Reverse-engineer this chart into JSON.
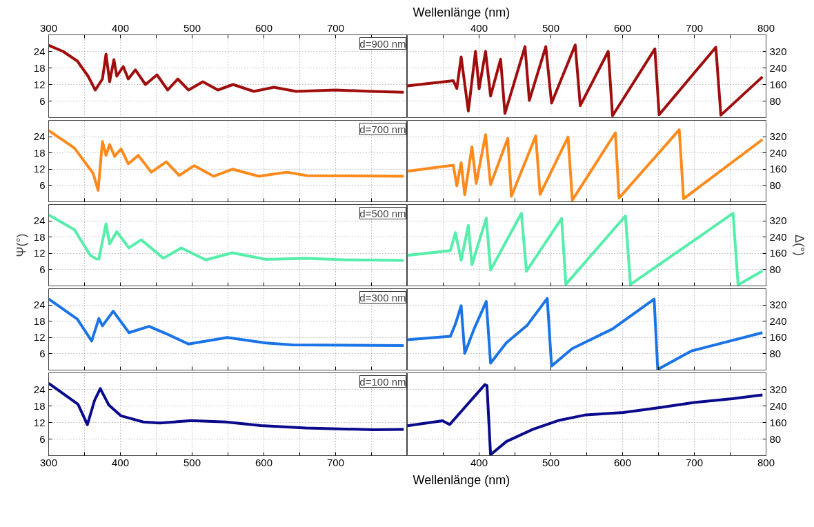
{
  "chart_data": [
    {
      "type": "line",
      "annotations": [
        "d=900 nm"
      ],
      "xlim": [
        300,
        800
      ],
      "xticks": [
        300,
        {
          "value": 350,
          "label": null
        },
        400,
        {
          "value": 450,
          "label": null
        },
        500,
        {
          "value": 550,
          "label": null
        },
        600,
        {
          "value": 650,
          "label": null
        },
        700,
        {
          "value": 750,
          "label": null
        }
      ],
      "ylim": [
        0,
        30
      ],
      "yticks": [
        6,
        12,
        18,
        24
      ],
      "grid": true,
      "series": [
        {
          "color": "#a00d0d",
          "x": [
            300,
            320,
            340,
            355,
            365,
            375,
            380,
            385,
            391,
            395,
            404,
            411,
            421,
            435,
            451,
            466,
            480,
            495,
            515,
            536,
            557,
            586,
            614,
            645,
            700,
            750,
            795
          ],
          "values": [
            26.2,
            24,
            20.5,
            15,
            10,
            14,
            23,
            13,
            21,
            15,
            18.5,
            14,
            17.3,
            12,
            15.5,
            10,
            14,
            10,
            13,
            10,
            12,
            9.5,
            11,
            9.5,
            10,
            9.5,
            9.2
          ]
        }
      ]
    },
    {
      "type": "line",
      "xlabel": "Wellenlänge (nm)",
      "xlim": [
        300,
        800
      ],
      "xticks": [
        {
          "value": 350,
          "label": null
        },
        400,
        {
          "value": 450,
          "label": null
        },
        500,
        {
          "value": 550,
          "label": null
        },
        600,
        {
          "value": 650,
          "label": null
        },
        700,
        {
          "value": 750,
          "label": null
        },
        800
      ],
      "y2lim": [
        0,
        400
      ],
      "y2ticks": [
        80,
        160,
        240,
        320
      ],
      "grid": true,
      "series": [
        {
          "color": "#a00d0d",
          "axis": "y2",
          "x": [
            300,
            364,
            369,
            375,
            385,
            395,
            400,
            409,
            416,
            430,
            436,
            464,
            470,
            493,
            501,
            534,
            541,
            580,
            586,
            645,
            651,
            730,
            737,
            795
          ],
          "values": [
            153,
            178,
            141,
            293,
            32,
            320,
            139,
            320,
            104,
            282,
            20,
            343,
            83,
            343,
            70,
            351,
            58,
            320,
            9,
            332,
            14,
            340,
            12,
            197
          ]
        }
      ]
    },
    {
      "type": "line",
      "annotations": [
        "d=700 nm"
      ],
      "xlim": [
        300,
        800
      ],
      "xticks": [
        300,
        {
          "value": 350,
          "label": null
        },
        400,
        {
          "value": 450,
          "label": null
        },
        500,
        {
          "value": 550,
          "label": null
        },
        600,
        {
          "value": 650,
          "label": null
        },
        700,
        {
          "value": 750,
          "label": null
        }
      ],
      "ylim": [
        0,
        30
      ],
      "yticks": [
        6,
        12,
        18,
        24
      ],
      "grid": true,
      "tick_labels": "y",
      "series": [
        {
          "color": "#ff8a1c",
          "x": [
            300,
            336,
            362,
            369,
            375,
            380,
            385,
            392,
            401,
            411,
            425,
            443,
            464,
            482,
            503,
            530,
            556,
            593,
            632,
            661,
            795
          ],
          "values": [
            26.3,
            19.8,
            10.5,
            4.2,
            22.2,
            17.1,
            21.1,
            16.7,
            19.5,
            14,
            17.1,
            10.9,
            14.7,
            9.7,
            13.3,
            9.4,
            12,
            9.4,
            10.9,
            9.6,
            9.4
          ]
        }
      ]
    },
    {
      "type": "line",
      "xlim": [
        300,
        800
      ],
      "xticks": [
        {
          "value": 350,
          "label": null
        },
        400,
        {
          "value": 450,
          "label": null
        },
        500,
        {
          "value": 550,
          "label": null
        },
        600,
        {
          "value": 650,
          "label": null
        },
        700,
        {
          "value": 750,
          "label": null
        },
        800
      ],
      "y2lim": [
        0,
        400
      ],
      "y2ticks": [
        80,
        160,
        240,
        320
      ],
      "grid": true,
      "tick_labels": "y",
      "series": [
        {
          "color": "#ff8a1c",
          "axis": "y2",
          "x": [
            300,
            364,
            369,
            375,
            380,
            390,
            396,
            409,
            416,
            440,
            445,
            479,
            485,
            524,
            530,
            590,
            595,
            679,
            685,
            795
          ],
          "values": [
            150,
            180,
            78,
            192,
            35,
            270,
            90,
            330,
            84,
            312,
            27,
            324,
            36,
            318,
            8,
            339,
            18,
            354,
            15,
            306
          ]
        }
      ]
    },
    {
      "type": "line",
      "annotations": [
        "d=500 nm"
      ],
      "ylabel": "Ψ(°)",
      "xlim": [
        300,
        800
      ],
      "xticks": [
        300,
        {
          "value": 350,
          "label": null
        },
        400,
        {
          "value": 450,
          "label": null
        },
        500,
        {
          "value": 550,
          "label": null
        },
        600,
        {
          "value": 650,
          "label": null
        },
        700,
        {
          "value": 750,
          "label": null
        }
      ],
      "ylim": [
        0,
        30
      ],
      "yticks": [
        6,
        12,
        18,
        24
      ],
      "grid": true,
      "tick_labels": "y",
      "series": [
        {
          "color": "#55eeaa",
          "x": [
            300,
            336,
            358,
            366,
            370,
            380,
            385,
            395,
            412,
            429,
            460,
            485,
            519,
            556,
            603,
            659,
            714,
            795
          ],
          "values": [
            26.2,
            20.7,
            11.3,
            10,
            9.9,
            22.9,
            15.5,
            20,
            14,
            17,
            10.2,
            14,
            9.6,
            12.2,
            9.8,
            10.2,
            9.6,
            9.4
          ]
        }
      ]
    },
    {
      "type": "line",
      "y2label": "Δ(°)",
      "xlim": [
        300,
        800
      ],
      "xticks": [
        {
          "value": 350,
          "label": null
        },
        400,
        {
          "value": 450,
          "label": null
        },
        500,
        {
          "value": 550,
          "label": null
        },
        600,
        {
          "value": 650,
          "label": null
        },
        700,
        {
          "value": 750,
          "label": null
        },
        800
      ],
      "y2lim": [
        0,
        400
      ],
      "y2ticks": [
        80,
        160,
        240,
        320
      ],
      "grid": true,
      "tick_labels": "y",
      "series": [
        {
          "color": "#55eeaa",
          "axis": "y2",
          "x": [
            300,
            360,
            367,
            375,
            385,
            390,
            410,
            416,
            459,
            466,
            515,
            521,
            604,
            611,
            754,
            761,
            795
          ],
          "values": [
            150,
            174,
            262,
            126,
            297,
            104,
            333,
            78,
            357,
            72,
            332,
            8,
            344,
            7,
            357,
            5,
            74
          ]
        }
      ]
    },
    {
      "type": "line",
      "annotations": [
        "d=300 nm"
      ],
      "xlim": [
        300,
        800
      ],
      "xticks": [
        300,
        {
          "value": 350,
          "label": null
        },
        400,
        {
          "value": 450,
          "label": null
        },
        500,
        {
          "value": 550,
          "label": null
        },
        600,
        {
          "value": 650,
          "label": null
        },
        700,
        {
          "value": 750,
          "label": null
        }
      ],
      "ylim": [
        0,
        30
      ],
      "yticks": [
        6,
        12,
        18,
        24
      ],
      "grid": true,
      "tick_labels": "y",
      "series": [
        {
          "color": "#1a74e8",
          "x": [
            300,
            340,
            360,
            370,
            375,
            390,
            412,
            440,
            464,
            495,
            549,
            603,
            640,
            795
          ],
          "values": [
            26.2,
            18.8,
            10.7,
            19,
            16.3,
            21.7,
            13.8,
            16.1,
            13.4,
            9.6,
            12,
            10,
            9.3,
            9
          ]
        }
      ]
    },
    {
      "type": "line",
      "xlim": [
        300,
        800
      ],
      "xticks": [
        {
          "value": 350,
          "label": null
        },
        400,
        {
          "value": 450,
          "label": null
        },
        500,
        {
          "value": 550,
          "label": null
        },
        600,
        {
          "value": 650,
          "label": null
        },
        700,
        {
          "value": 750,
          "label": null
        },
        800
      ],
      "y2lim": [
        0,
        400
      ],
      "y2ticks": [
        80,
        160,
        240,
        320
      ],
      "grid": true,
      "tick_labels": "y",
      "series": [
        {
          "color": "#1a74e8",
          "axis": "y2",
          "x": [
            300,
            360,
            367,
            375,
            380,
            393,
            410,
            416,
            438,
            467,
            495,
            501,
            530,
            586,
            644,
            649,
            696,
            795
          ],
          "values": [
            149,
            166,
            226,
            316,
            82,
            202,
            337,
            34,
            134,
            220,
            352,
            20,
            106,
            202,
            349,
            3,
            94,
            184
          ]
        }
      ]
    },
    {
      "type": "line",
      "annotations": [
        "d=100 nm"
      ],
      "xlim": [
        300,
        800
      ],
      "xticks": [
        300,
        {
          "value": 350,
          "label": null
        },
        400,
        {
          "value": 450,
          "label": null
        },
        500,
        {
          "value": 550,
          "label": null
        },
        600,
        {
          "value": 650,
          "label": null
        },
        700,
        {
          "value": 750,
          "label": null
        }
      ],
      "ylim": [
        0,
        30
      ],
      "yticks": [
        6,
        12,
        18,
        24
      ],
      "grid": true,
      "series": [
        {
          "color": "#0a0a8c",
          "x": [
            300,
            341,
            354,
            364,
            372,
            384,
            401,
            432,
            455,
            499,
            547,
            596,
            659,
            752,
            795
          ],
          "values": [
            26.2,
            18.6,
            11.2,
            20,
            24.3,
            18.3,
            14.4,
            12.2,
            11.8,
            12.7,
            12.2,
            10.9,
            10,
            9.4,
            9.5
          ]
        }
      ]
    },
    {
      "type": "line",
      "xlabel": "Wellenlänge (nm)",
      "xlim": [
        300,
        800
      ],
      "xticks": [
        {
          "value": 350,
          "label": null
        },
        400,
        {
          "value": 450,
          "label": null
        },
        500,
        {
          "value": 550,
          "label": null
        },
        600,
        {
          "value": 650,
          "label": null
        },
        700,
        {
          "value": 750,
          "label": null
        },
        800
      ],
      "y2lim": [
        0,
        400
      ],
      "y2ticks": [
        80,
        160,
        240,
        320
      ],
      "grid": true,
      "series": [
        {
          "color": "#0a0a8c",
          "axis": "y2",
          "x": [
            300,
            349,
            359,
            408,
            411,
            416,
            438,
            475,
            512,
            549,
            601,
            651,
            698,
            753,
            795
          ],
          "values": [
            144,
            168,
            150,
            343,
            338,
            4,
            68,
            127,
            171,
            197,
            208,
            232,
            256,
            275,
            293
          ]
        }
      ]
    }
  ]
}
